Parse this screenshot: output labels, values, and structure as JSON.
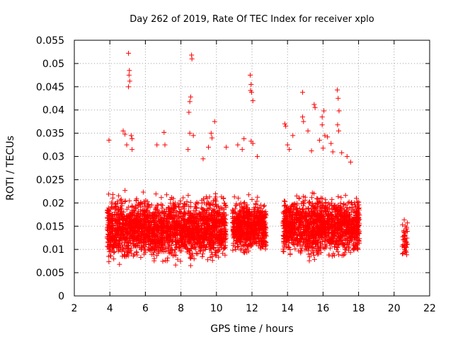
{
  "chart_data": {
    "type": "scatter",
    "title": "Day 262 of 2019, Rate Of TEC Index for receiver xplo",
    "xlabel": "GPS time / hours",
    "ylabel": "ROTI / TECUs",
    "xlim": [
      2,
      22
    ],
    "ylim": [
      0,
      0.055
    ],
    "x_ticks": [
      "2",
      "4",
      "6",
      "8",
      "10",
      "12",
      "14",
      "16",
      "18",
      "20",
      "22"
    ],
    "y_ticks": [
      "0",
      "0.005",
      "0.01",
      "0.015",
      "0.02",
      "0.025",
      "0.03",
      "0.035",
      "0.04",
      "0.045",
      "0.05",
      "0.055"
    ],
    "grid": true,
    "marker": "+",
    "color": "#ff0000",
    "series": [
      {
        "name": "ROTI",
        "clusters": [
          {
            "x_range": [
              3.85,
              10.55
            ],
            "y_range": [
              0.006,
              0.023
            ],
            "count": 2300
          },
          {
            "x_range": [
              10.9,
              12.8
            ],
            "y_range": [
              0.008,
              0.022
            ],
            "count": 700
          },
          {
            "x_range": [
              13.75,
              18.05
            ],
            "y_range": [
              0.007,
              0.023
            ],
            "count": 1500
          },
          {
            "x_range": [
              20.45,
              20.75
            ],
            "y_range": [
              0.007,
              0.018
            ],
            "count": 45
          }
        ],
        "outliers": [
          [
            5.05,
            0.0522
          ],
          [
            5.1,
            0.0485
          ],
          [
            5.08,
            0.0475
          ],
          [
            5.05,
            0.045
          ],
          [
            5.12,
            0.0462
          ],
          [
            8.6,
            0.0518
          ],
          [
            8.62,
            0.051
          ],
          [
            8.55,
            0.0428
          ],
          [
            8.5,
            0.0418
          ],
          [
            8.45,
            0.0395
          ],
          [
            11.9,
            0.0475
          ],
          [
            11.95,
            0.0455
          ],
          [
            11.98,
            0.0438
          ],
          [
            12.05,
            0.042
          ],
          [
            11.92,
            0.0442
          ],
          [
            14.85,
            0.0438
          ],
          [
            15.5,
            0.0412
          ],
          [
            15.55,
            0.0405
          ],
          [
            16.05,
            0.0398
          ],
          [
            15.95,
            0.0385
          ],
          [
            16.8,
            0.0443
          ],
          [
            16.85,
            0.0425
          ],
          [
            16.9,
            0.0398
          ],
          [
            16.82,
            0.0368
          ],
          [
            16.88,
            0.0355
          ],
          [
            4.75,
            0.0355
          ],
          [
            4.85,
            0.0348
          ],
          [
            4.95,
            0.0325
          ],
          [
            5.2,
            0.0345
          ],
          [
            5.25,
            0.0338
          ],
          [
            5.25,
            0.0315
          ],
          [
            3.95,
            0.0335
          ],
          [
            7.05,
            0.0352
          ],
          [
            7.1,
            0.0325
          ],
          [
            6.65,
            0.0325
          ],
          [
            8.5,
            0.035
          ],
          [
            8.7,
            0.0345
          ],
          [
            8.4,
            0.0315
          ],
          [
            9.7,
            0.035
          ],
          [
            9.75,
            0.034
          ],
          [
            9.9,
            0.0375
          ],
          [
            9.55,
            0.032
          ],
          [
            9.25,
            0.0295
          ],
          [
            10.55,
            0.032
          ],
          [
            11.2,
            0.0325
          ],
          [
            11.55,
            0.0338
          ],
          [
            11.45,
            0.0315
          ],
          [
            11.95,
            0.0333
          ],
          [
            12.05,
            0.0328
          ],
          [
            12.3,
            0.03
          ],
          [
            13.85,
            0.037
          ],
          [
            13.9,
            0.0365
          ],
          [
            14.0,
            0.0325
          ],
          [
            14.1,
            0.0315
          ],
          [
            14.3,
            0.0345
          ],
          [
            14.85,
            0.0385
          ],
          [
            14.9,
            0.0375
          ],
          [
            15.15,
            0.0355
          ],
          [
            15.35,
            0.0312
          ],
          [
            15.8,
            0.0335
          ],
          [
            15.95,
            0.0368
          ],
          [
            16.1,
            0.0345
          ],
          [
            16.0,
            0.0318
          ],
          [
            16.25,
            0.0342
          ],
          [
            17.05,
            0.0308
          ],
          [
            17.35,
            0.03
          ],
          [
            17.55,
            0.0288
          ],
          [
            16.45,
            0.0328
          ],
          [
            16.55,
            0.031
          ]
        ]
      }
    ]
  }
}
